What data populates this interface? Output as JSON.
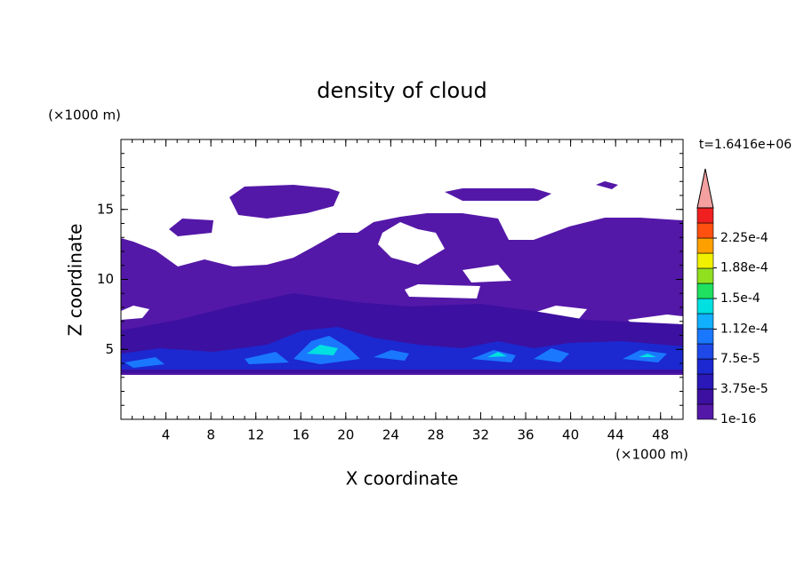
{
  "chart_data": {
    "type": "contour",
    "title": "density of cloud",
    "xlabel": "X coordinate",
    "ylabel": "Z coordinate",
    "x_unit": "(×1000 m)",
    "y_unit": "(×1000 m)",
    "time_label": "t=1.6416e+06",
    "xlim": [
      0,
      50
    ],
    "ylim": [
      0,
      20
    ],
    "xticks": [
      4,
      8,
      12,
      16,
      20,
      24,
      28,
      32,
      36,
      40,
      44,
      48
    ],
    "yticks": [
      5,
      10,
      15
    ],
    "colorbar": {
      "levels": [
        {
          "value": 1e-16,
          "label": "1e-16"
        },
        {
          "value": 3.75e-05,
          "label": "3.75e-5"
        },
        {
          "value": 7.5e-05,
          "label": "7.5e-5"
        },
        {
          "value": 0.000112,
          "label": "1.12e-4"
        },
        {
          "value": 0.00015,
          "label": "1.5e-4"
        },
        {
          "value": 0.000188,
          "label": "1.88e-4"
        },
        {
          "value": 0.000225,
          "label": "2.25e-4"
        }
      ],
      "colors": [
        "#5418a8",
        "#3c10a0",
        "#2a18b8",
        "#1c28d0",
        "#1e48e8",
        "#1a78ff",
        "#10b0ff",
        "#00e0e0",
        "#20e060",
        "#90e020",
        "#f0f000",
        "#ffa000",
        "#ff5010",
        "#f02020"
      ],
      "overflow_color": "#f4a0a0"
    }
  }
}
